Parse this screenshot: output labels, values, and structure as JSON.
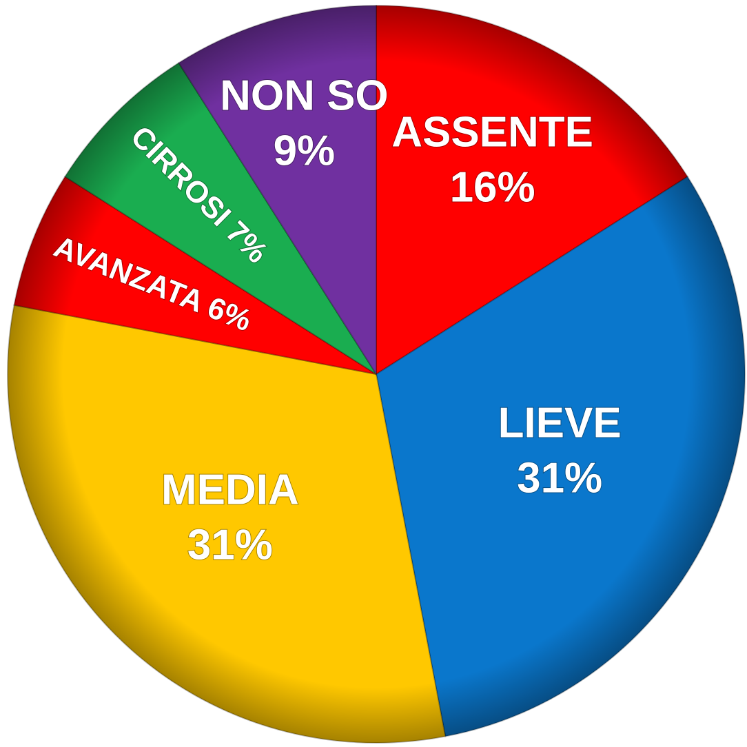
{
  "chart_data": {
    "type": "pie",
    "categories": [
      "ASSENTE",
      "LIEVE",
      "MEDIA",
      "AVANZATA",
      "CIRROSI",
      "NON SO"
    ],
    "values": [
      16,
      31,
      31,
      6,
      7,
      9
    ],
    "value_labels": [
      "16%",
      "31%",
      "31%",
      "6%",
      "7%",
      "9%"
    ],
    "colors": [
      "#ff0000",
      "#0a77cc",
      "#ffc800",
      "#ff0000",
      "#1aad50",
      "#7030a0"
    ]
  }
}
